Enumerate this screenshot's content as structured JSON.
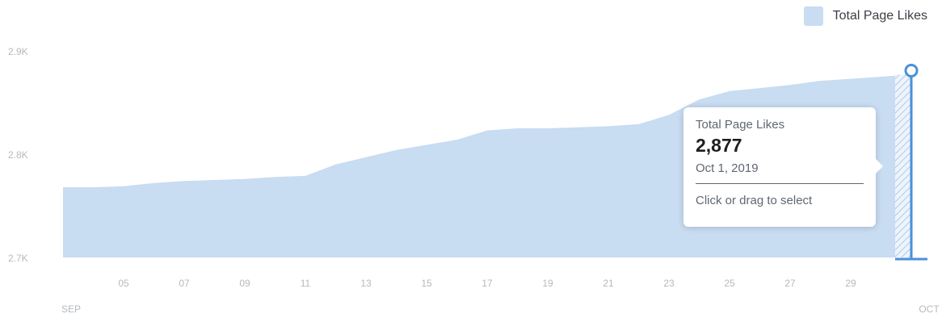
{
  "legend": {
    "label": "Total Page Likes",
    "color": "#c8dcf2"
  },
  "tooltip": {
    "title": "Total Page Likes",
    "value": "2,877",
    "date": "Oct 1, 2019",
    "action": "Click or drag to select"
  },
  "colors": {
    "area_fill": "#c8dcf2",
    "marker": "#4a90d9",
    "axis_text": "#b5b9bf"
  },
  "chart_data": {
    "type": "area",
    "series": [
      {
        "name": "Total Page Likes",
        "x": [
          "Sep 3",
          "Sep 4",
          "Sep 5",
          "Sep 6",
          "Sep 7",
          "Sep 8",
          "Sep 9",
          "Sep 10",
          "Sep 11",
          "Sep 12",
          "Sep 13",
          "Sep 14",
          "Sep 15",
          "Sep 16",
          "Sep 17",
          "Sep 18",
          "Sep 19",
          "Sep 20",
          "Sep 21",
          "Sep 22",
          "Sep 23",
          "Sep 24",
          "Sep 25",
          "Sep 26",
          "Sep 27",
          "Sep 28",
          "Sep 29",
          "Sep 30",
          "Oct 1"
        ],
        "values": [
          2768,
          2768,
          2769,
          2772,
          2774,
          2775,
          2776,
          2778,
          2779,
          2790,
          2797,
          2804,
          2809,
          2814,
          2823,
          2825,
          2825,
          2826,
          2827,
          2829,
          2838,
          2853,
          2861,
          2864,
          2867,
          2871,
          2873,
          2875,
          2877
        ]
      }
    ],
    "y_ticks": [
      "2.7K",
      "2.8K",
      "2.9K"
    ],
    "y_tick_values": [
      2700,
      2800,
      2900
    ],
    "ylim": [
      2700,
      2900
    ],
    "x_ticks": [
      "05",
      "07",
      "09",
      "11",
      "13",
      "15",
      "17",
      "19",
      "21",
      "23",
      "25",
      "27",
      "29"
    ],
    "x_tick_index": [
      2,
      4,
      6,
      8,
      10,
      12,
      14,
      16,
      18,
      20,
      22,
      24,
      26
    ],
    "x_month_labels": [
      "SEP",
      "OCT"
    ],
    "highlighted_point": {
      "x": "Oct 1",
      "y": 2877
    },
    "legend_position": "top-right",
    "grid": false
  }
}
